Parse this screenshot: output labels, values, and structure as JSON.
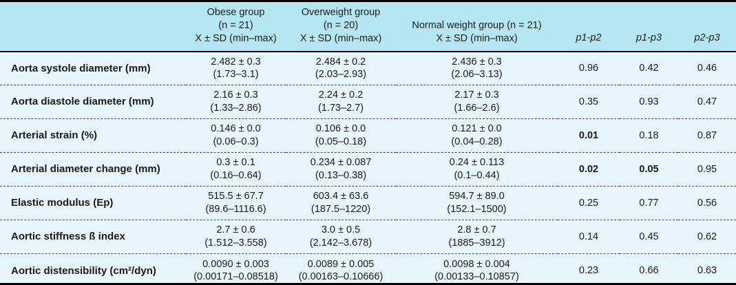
{
  "table": {
    "header": {
      "groups": [
        {
          "line1": "Obese group",
          "line2": "(n = 21)",
          "line3": "X ± SD (min–max)"
        },
        {
          "line1": "Overweight group",
          "line2": "(n = 20)",
          "line3": "X ± SD (min–max)"
        },
        {
          "line1": "Normal weight group (n = 21)",
          "line2": "X ± SD (min–max)"
        }
      ],
      "p_columns": [
        "p1-p2",
        "p1-p3",
        "p2-p3"
      ]
    },
    "rows": [
      {
        "label": "Aorta systole diameter (mm)",
        "obese": {
          "mean": "2.482 ± 0.3",
          "range": "(1.73–3.1)"
        },
        "overweight": {
          "mean": "2.484 ± 0.2",
          "range": "(2.03–2.93)"
        },
        "normal": {
          "mean": "2.436 ± 0.3",
          "range": "(2.06–3.13)"
        },
        "p12": {
          "value": "0.96",
          "significant": false
        },
        "p13": {
          "value": "0.42",
          "significant": false
        },
        "p23": {
          "value": "0.46",
          "significant": false
        }
      },
      {
        "label": "Aorta diastole diameter (mm)",
        "obese": {
          "mean": "2.16 ± 0.3",
          "range": "(1.33–2.86)"
        },
        "overweight": {
          "mean": "2.24 ± 0.2",
          "range": "(1.73–2.7)"
        },
        "normal": {
          "mean": "2.17 ± 0.3",
          "range": "(1.66–2.6)"
        },
        "p12": {
          "value": "0.35",
          "significant": false
        },
        "p13": {
          "value": "0.93",
          "significant": false
        },
        "p23": {
          "value": "0.47",
          "significant": false
        }
      },
      {
        "label": "Arterial strain (%)",
        "obese": {
          "mean": "0.146 ± 0.0",
          "range": "(0.06–0.3)"
        },
        "overweight": {
          "mean": "0.106 ± 0.0",
          "range": "(0.05–0.18)"
        },
        "normal": {
          "mean": "0.121 ± 0.0",
          "range": "(0.04–0.28)"
        },
        "p12": {
          "value": "0.01",
          "significant": true
        },
        "p13": {
          "value": "0.18",
          "significant": false
        },
        "p23": {
          "value": "0.87",
          "significant": false
        }
      },
      {
        "label": "Arterial diameter change (mm)",
        "obese": {
          "mean": "0.3 ± 0.1",
          "range": "(0.16–0.64)"
        },
        "overweight": {
          "mean": "0.234 ± 0.087",
          "range": "(0.13–0.38)"
        },
        "normal": {
          "mean": "0.24 ± 0.113",
          "range": "(0.1–0.44)"
        },
        "p12": {
          "value": "0.02",
          "significant": true
        },
        "p13": {
          "value": "0.05",
          "significant": true
        },
        "p23": {
          "value": "0.95",
          "significant": false
        }
      },
      {
        "label": "Elastic modulus (Ep)",
        "obese": {
          "mean": "515.5 ± 67.7",
          "range": "(89.6–1116.6)"
        },
        "overweight": {
          "mean": "603.4 ± 63.6",
          "range": "(187.5–1220)"
        },
        "normal": {
          "mean": "594.7 ± 89.0",
          "range": "(152.1–1500)"
        },
        "p12": {
          "value": "0.25",
          "significant": false
        },
        "p13": {
          "value": "0.77",
          "significant": false
        },
        "p23": {
          "value": "0.56",
          "significant": false
        }
      },
      {
        "label": "Aortic stiffness ß index",
        "obese": {
          "mean": "2.7 ± 0.6",
          "range": "(1.512–3.558)"
        },
        "overweight": {
          "mean": "3.0 ± 0.5",
          "range": "(2.142–3.678)"
        },
        "normal": {
          "mean": "2.8 ± 0.7",
          "range": "(1885–3912)"
        },
        "p12": {
          "value": "0.14",
          "significant": false
        },
        "p13": {
          "value": "0.45",
          "significant": false
        },
        "p23": {
          "value": "0.62",
          "significant": false
        }
      },
      {
        "label": "Aortic distensibility (cm²/dyn)",
        "obese": {
          "mean": "0.0090 ± 0.003",
          "range": "(0.00171–0.08518)"
        },
        "overweight": {
          "mean": "0.0089 ± 0.005",
          "range": "(0.00163–0.10666)"
        },
        "normal": {
          "mean": "0.0098 ± 0.004",
          "range": "(0.00133–0.10857)"
        },
        "p12": {
          "value": "0.23",
          "significant": false
        },
        "p13": {
          "value": "0.66",
          "significant": false
        },
        "p23": {
          "value": "0.63",
          "significant": false
        }
      }
    ]
  },
  "colors": {
    "header_background": "#b4e7f2",
    "body_background": "#e7f4f9",
    "border": "#000000",
    "text": "#1a1a1a"
  }
}
